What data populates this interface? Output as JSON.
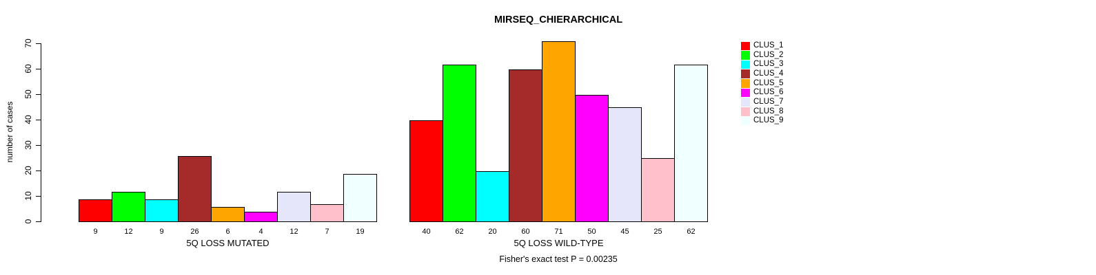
{
  "chart_data": {
    "type": "bar",
    "title": "MIRSEQ_CHIERARCHICAL",
    "ylabel": "number of cases",
    "ylim": [
      0,
      70
    ],
    "yticks": [
      0,
      10,
      20,
      30,
      40,
      50,
      60,
      70
    ],
    "grid": false,
    "legend_position": "right",
    "bar_value_labels": true,
    "background": "#FFFFFF",
    "bar_border_color": "#000000",
    "categories": [
      "5Q LOSS MUTATED",
      "5Q LOSS WILD-TYPE"
    ],
    "series": [
      {
        "name": "CLUS_1",
        "color": "#FF0000",
        "values": [
          9,
          40
        ]
      },
      {
        "name": "CLUS_2",
        "color": "#00FF00",
        "values": [
          12,
          62
        ]
      },
      {
        "name": "CLUS_3",
        "color": "#00FFFF",
        "values": [
          9,
          20
        ]
      },
      {
        "name": "CLUS_4",
        "color": "#A52A2A",
        "values": [
          26,
          60
        ]
      },
      {
        "name": "CLUS_5",
        "color": "#FFA500",
        "values": [
          6,
          71
        ]
      },
      {
        "name": "CLUS_6",
        "color": "#FF00FF",
        "values": [
          4,
          50
        ]
      },
      {
        "name": "CLUS_7",
        "color": "#E6E6FA",
        "values": [
          12,
          45
        ]
      },
      {
        "name": "CLUS_8",
        "color": "#FFC0CB",
        "values": [
          7,
          25
        ]
      },
      {
        "name": "CLUS_9",
        "color": "#F0FFFF",
        "values": [
          19,
          62
        ]
      }
    ],
    "annotation": "Fisher's exact test P = 0.00235"
  }
}
